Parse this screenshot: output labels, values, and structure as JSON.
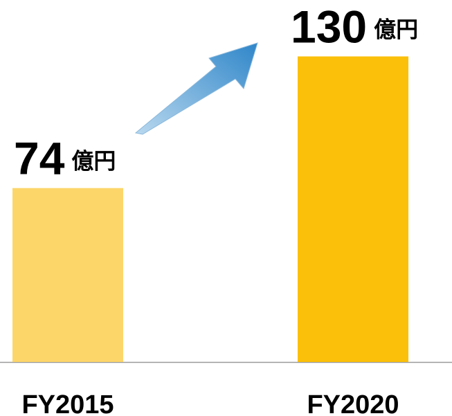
{
  "chart_data": {
    "type": "bar",
    "categories": [
      "FY2015",
      "FY2020"
    ],
    "values": [
      74,
      130
    ],
    "unit": "億円",
    "colors": [
      "#fdd66a",
      "#fbc00a"
    ],
    "ylim": [
      0,
      154
    ]
  }
}
